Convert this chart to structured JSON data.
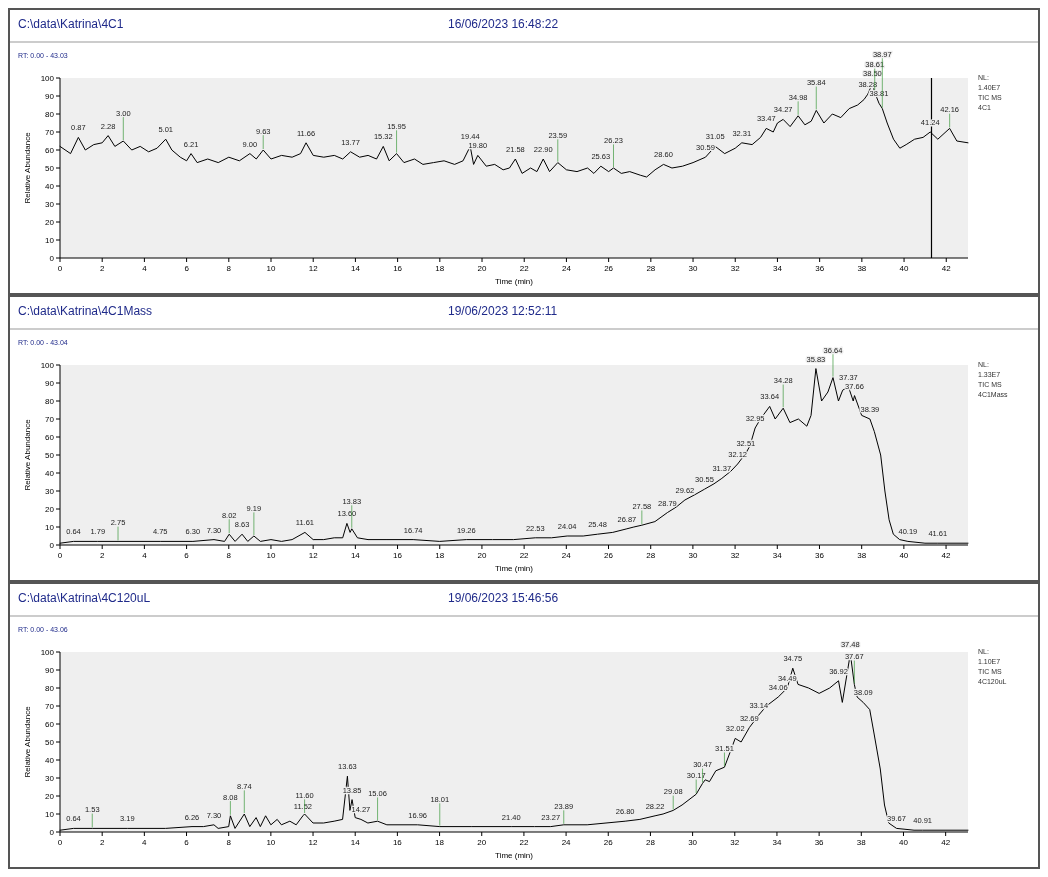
{
  "chart_data": [
    {
      "type": "line",
      "title": "C:\\data\\Katrina\\4C1",
      "subtitle": "16/06/2023 16:48:22",
      "xlabel": "Time (min)",
      "ylabel": "Relative Abundance",
      "xlim": [
        0,
        43.03
      ],
      "xticks": [
        0,
        2,
        4,
        6,
        8,
        10,
        12,
        14,
        16,
        18,
        20,
        22,
        24,
        26,
        28,
        30,
        32,
        34,
        36,
        38,
        40,
        42
      ],
      "ylim": [
        0,
        100
      ],
      "yticks": [
        0,
        10,
        20,
        30,
        40,
        50,
        60,
        70,
        80,
        90,
        100
      ],
      "ref_lines": [
        {
          "axis": "x",
          "value": 41.3
        }
      ],
      "x": [
        0,
        0.5,
        0.87,
        1.2,
        1.6,
        2,
        2.28,
        2.6,
        3,
        3.4,
        3.8,
        4.2,
        4.6,
        5.01,
        5.3,
        5.7,
        6,
        6.21,
        6.5,
        7,
        7.5,
        8,
        8.5,
        9,
        9.3,
        9.63,
        10,
        10.5,
        11,
        11.4,
        11.66,
        12,
        12.5,
        13,
        13.4,
        13.77,
        14.2,
        14.6,
        15,
        15.32,
        15.6,
        15.95,
        16.3,
        16.8,
        17.2,
        17.7,
        18.2,
        18.7,
        19.1,
        19.44,
        19.6,
        19.8,
        20.2,
        20.6,
        21,
        21.3,
        21.58,
        21.9,
        22.3,
        22.6,
        22.9,
        23.2,
        23.59,
        24,
        24.5,
        25,
        25.3,
        25.63,
        26,
        26.23,
        26.6,
        27,
        27.5,
        27.8,
        28.2,
        28.6,
        29,
        29.5,
        30,
        30.59,
        31.05,
        31.5,
        32,
        32.31,
        32.8,
        33.2,
        33.47,
        33.8,
        34,
        34.27,
        34.6,
        34.98,
        35.3,
        35.6,
        35.84,
        36.2,
        36.6,
        37,
        37.4,
        37.8,
        38.1,
        38.28,
        38.5,
        38.61,
        38.81,
        38.97,
        39.2,
        39.5,
        39.8,
        40.1,
        40.5,
        40.9,
        41.24,
        41.6,
        42.16,
        42.5,
        43.03
      ],
      "series": [
        {
          "color": "#000000",
          "values": [
            62,
            58,
            67,
            60,
            63,
            64,
            68,
            62,
            65,
            60,
            62,
            59,
            61,
            66,
            60,
            56,
            54,
            58,
            53,
            55,
            53,
            56,
            54,
            58,
            55,
            60,
            55,
            57,
            56,
            58,
            64,
            57,
            56,
            57,
            55,
            59,
            56,
            57,
            55,
            62,
            54,
            58,
            53,
            55,
            52,
            53,
            54,
            52,
            54,
            62,
            52,
            57,
            51,
            52,
            49,
            50,
            55,
            47,
            50,
            48,
            55,
            48,
            53,
            49,
            48,
            50,
            47,
            51,
            48,
            50,
            47,
            48,
            46,
            45,
            49,
            52,
            50,
            51,
            53,
            56,
            62,
            58,
            61,
            64,
            63,
            67,
            72,
            70,
            75,
            77,
            73,
            79,
            74,
            76,
            82,
            75,
            80,
            78,
            83,
            85,
            88,
            91,
            97,
            92,
            86,
            83,
            75,
            66,
            61,
            63,
            66,
            67,
            70,
            66,
            72,
            65,
            64
          ]
        }
      ],
      "annotations": [
        "RT: 0.00 - 43.03",
        "NL:",
        "1.40E7",
        "TIC  MS",
        "4C1",
        {
          "text": "0.87",
          "x": 0.87,
          "y": 67
        },
        {
          "text": "2.28",
          "x": 2.28,
          "y": 68
        },
        {
          "text": "3.00",
          "x": 3,
          "y": 65
        },
        {
          "text": "5.01",
          "x": 5.01,
          "y": 66
        },
        {
          "text": "6.21",
          "x": 6.21,
          "y": 58
        },
        {
          "text": "9.00",
          "x": 9,
          "y": 58
        },
        {
          "text": "9.63",
          "x": 9.63,
          "y": 60
        },
        {
          "text": "11.66",
          "x": 11.66,
          "y": 64
        },
        {
          "text": "13.77",
          "x": 13.77,
          "y": 59
        },
        {
          "text": "15.32",
          "x": 15.32,
          "y": 62
        },
        {
          "text": "15.95",
          "x": 15.95,
          "y": 58
        },
        {
          "text": "19.44",
          "x": 19.44,
          "y": 62
        },
        {
          "text": "19.80",
          "x": 19.8,
          "y": 57
        },
        {
          "text": "21.58",
          "x": 21.58,
          "y": 55
        },
        {
          "text": "22.90",
          "x": 22.9,
          "y": 55
        },
        {
          "text": "23.59",
          "x": 23.59,
          "y": 53
        },
        {
          "text": "25.63",
          "x": 25.63,
          "y": 51
        },
        {
          "text": "26.23",
          "x": 26.23,
          "y": 50
        },
        {
          "text": "28.60",
          "x": 28.6,
          "y": 52
        },
        {
          "text": "30.59",
          "x": 30.59,
          "y": 56
        },
        {
          "text": "31.05",
          "x": 31.05,
          "y": 62
        },
        {
          "text": "32.31",
          "x": 32.31,
          "y": 64
        },
        {
          "text": "33.47",
          "x": 33.47,
          "y": 72
        },
        {
          "text": "34.27",
          "x": 34.27,
          "y": 77
        },
        {
          "text": "34.98",
          "x": 34.98,
          "y": 79
        },
        {
          "text": "35.84",
          "x": 35.84,
          "y": 82
        },
        {
          "text": "38.28",
          "x": 38.28,
          "y": 91
        },
        {
          "text": "38.50",
          "x": 38.5,
          "y": 97
        },
        {
          "text": "38.61",
          "x": 38.61,
          "y": 92
        },
        {
          "text": "38.81",
          "x": 38.81,
          "y": 86
        },
        {
          "text": "38.97",
          "x": 38.97,
          "y": 83
        },
        {
          "text": "41.24",
          "x": 41.24,
          "y": 70
        },
        {
          "text": "42.16",
          "x": 42.16,
          "y": 72
        }
      ]
    },
    {
      "type": "line",
      "title": "C:\\data\\Katrina\\4C1Mass",
      "subtitle": "19/06/2023 12:52:11",
      "xlabel": "Time (min)",
      "ylabel": "Relative Abundance",
      "xlim": [
        0,
        43.04
      ],
      "xticks": [
        0,
        2,
        4,
        6,
        8,
        10,
        12,
        14,
        16,
        18,
        20,
        22,
        24,
        26,
        28,
        30,
        32,
        34,
        36,
        38,
        40,
        42
      ],
      "ylim": [
        0,
        100
      ],
      "yticks": [
        0,
        10,
        20,
        30,
        40,
        50,
        60,
        70,
        80,
        90,
        100
      ],
      "x": [
        0,
        0.64,
        1.79,
        2.75,
        4.75,
        6.3,
        7.3,
        7.8,
        8.02,
        8.3,
        8.63,
        8.9,
        9.19,
        9.5,
        10,
        10.5,
        11,
        11.61,
        12,
        12.5,
        13,
        13.4,
        13.6,
        13.75,
        13.83,
        14.1,
        14.6,
        15.5,
        16.74,
        18,
        19.26,
        20.5,
        21.5,
        22.53,
        23.3,
        24.04,
        24.8,
        25.48,
        26.2,
        26.87,
        27.2,
        27.58,
        28.2,
        28.79,
        29.2,
        29.62,
        30.1,
        30.55,
        31,
        31.37,
        31.8,
        32.12,
        32.51,
        32.7,
        32.95,
        33.2,
        33.64,
        33.9,
        34.28,
        34.6,
        35,
        35.4,
        35.6,
        35.83,
        36.1,
        36.4,
        36.64,
        36.9,
        37.1,
        37.37,
        37.6,
        37.66,
        38,
        38.39,
        38.6,
        38.9,
        39.1,
        39.3,
        39.5,
        39.8,
        40.19,
        41,
        41.61,
        43.04
      ],
      "series": [
        {
          "color": "#000000",
          "values": [
            1,
            2,
            2,
            2,
            2,
            2,
            3,
            2,
            6,
            2,
            6,
            2,
            5,
            2,
            3,
            2,
            3,
            7,
            3,
            3,
            4,
            4,
            12,
            7,
            9,
            4,
            3,
            3,
            3,
            2,
            3,
            3,
            3,
            4,
            4,
            5,
            5,
            6,
            7,
            9,
            10,
            11,
            13,
            18,
            21,
            25,
            28,
            31,
            34,
            37,
            41,
            45,
            51,
            55,
            65,
            70,
            77,
            70,
            76,
            68,
            70,
            66,
            72,
            98,
            80,
            85,
            93,
            80,
            86,
            88,
            80,
            83,
            72,
            70,
            63,
            50,
            30,
            14,
            6,
            3,
            2,
            1,
            1,
            1
          ]
        }
      ],
      "annotations": [
        "RT: 0.00 - 43.04",
        "NL:",
        "1.33E7",
        "TIC  MS",
        "4C1Mass",
        {
          "text": "0.64",
          "x": 0.64,
          "y": 2
        },
        {
          "text": "1.79",
          "x": 1.79,
          "y": 2
        },
        {
          "text": "2.75",
          "x": 2.75,
          "y": 2
        },
        {
          "text": "4.75",
          "x": 4.75,
          "y": 2
        },
        {
          "text": "6.30",
          "x": 6.3,
          "y": 2
        },
        {
          "text": "7.30",
          "x": 7.3,
          "y": 3
        },
        {
          "text": "8.02",
          "x": 8.02,
          "y": 6
        },
        {
          "text": "8.63",
          "x": 8.63,
          "y": 6
        },
        {
          "text": "9.19",
          "x": 9.19,
          "y": 5
        },
        {
          "text": "11.61",
          "x": 11.61,
          "y": 7
        },
        {
          "text": "13.60",
          "x": 13.6,
          "y": 12
        },
        {
          "text": "13.83",
          "x": 13.83,
          "y": 9
        },
        {
          "text": "16.74",
          "x": 16.74,
          "y": 3
        },
        {
          "text": "19.26",
          "x": 19.26,
          "y": 3
        },
        {
          "text": "22.53",
          "x": 22.53,
          "y": 4
        },
        {
          "text": "24.04",
          "x": 24.04,
          "y": 5
        },
        {
          "text": "25.48",
          "x": 25.48,
          "y": 6
        },
        {
          "text": "26.87",
          "x": 26.87,
          "y": 9
        },
        {
          "text": "27.58",
          "x": 27.58,
          "y": 11
        },
        {
          "text": "28.79",
          "x": 28.79,
          "y": 18
        },
        {
          "text": "29.62",
          "x": 29.62,
          "y": 25
        },
        {
          "text": "30.55",
          "x": 30.55,
          "y": 31
        },
        {
          "text": "31.37",
          "x": 31.37,
          "y": 37
        },
        {
          "text": "32.12",
          "x": 32.12,
          "y": 45
        },
        {
          "text": "32.51",
          "x": 32.51,
          "y": 51
        },
        {
          "text": "32.95",
          "x": 32.95,
          "y": 65
        },
        {
          "text": "33.64",
          "x": 33.64,
          "y": 77
        },
        {
          "text": "34.28",
          "x": 34.28,
          "y": 76
        },
        {
          "text": "35.83",
          "x": 35.83,
          "y": 98
        },
        {
          "text": "36.64",
          "x": 36.64,
          "y": 93
        },
        {
          "text": "37.37",
          "x": 37.37,
          "y": 88
        },
        {
          "text": "37.66",
          "x": 37.66,
          "y": 83
        },
        {
          "text": "38.39",
          "x": 38.39,
          "y": 70
        },
        {
          "text": "40.19",
          "x": 40.19,
          "y": 2
        },
        {
          "text": "41.61",
          "x": 41.61,
          "y": 1
        }
      ]
    },
    {
      "type": "line",
      "title": "C:\\data\\Katrina\\4C120uL",
      "subtitle": "19/06/2023 15:46:56",
      "xlabel": "Time (min)",
      "ylabel": "Relative Abundance",
      "xlim": [
        0,
        43.06
      ],
      "xticks": [
        0,
        2,
        4,
        6,
        8,
        10,
        12,
        14,
        16,
        18,
        20,
        22,
        24,
        26,
        28,
        30,
        32,
        34,
        36,
        38,
        40,
        42
      ],
      "ylim": [
        0,
        100
      ],
      "yticks": [
        0,
        10,
        20,
        30,
        40,
        50,
        60,
        70,
        80,
        90,
        100
      ],
      "x": [
        0,
        0.64,
        1.53,
        3.19,
        5,
        6.26,
        6.8,
        7.3,
        7.5,
        8,
        8.08,
        8.3,
        8.74,
        9,
        9.3,
        9.5,
        9.75,
        10,
        10.3,
        10.5,
        10.9,
        11.2,
        11.52,
        11.6,
        12,
        12.5,
        13,
        13.4,
        13.63,
        13.75,
        13.85,
        14,
        14.27,
        14.6,
        15.06,
        15.5,
        16.96,
        18.01,
        19.5,
        21.4,
        22.5,
        23.27,
        23.89,
        25,
        26.8,
        27.5,
        28.22,
        28.6,
        29.08,
        29.5,
        30.17,
        30.47,
        30.6,
        30.8,
        31.1,
        31.51,
        31.8,
        32.02,
        32.3,
        32.69,
        33.14,
        33.5,
        34.06,
        34.49,
        34.75,
        35,
        35.5,
        36,
        36.5,
        36.92,
        37.1,
        37.48,
        37.67,
        37.8,
        38.09,
        38.4,
        38.6,
        38.9,
        39.1,
        39.3,
        39.67,
        40.5,
        40.91,
        43.06
      ],
      "series": [
        {
          "color": "#000000",
          "values": [
            1,
            2,
            2,
            2,
            2,
            3,
            3,
            4,
            2,
            3,
            9,
            2,
            10,
            3,
            8,
            3,
            9,
            4,
            7,
            4,
            6,
            4,
            9,
            10,
            5,
            5,
            6,
            7,
            31,
            12,
            18,
            8,
            7,
            5,
            6,
            4,
            4,
            3,
            3,
            3,
            3,
            3,
            4,
            4,
            6,
            7,
            9,
            10,
            12,
            15,
            21,
            27,
            29,
            28,
            34,
            36,
            45,
            52,
            50,
            58,
            65,
            70,
            75,
            80,
            91,
            82,
            80,
            77,
            80,
            84,
            72,
            99,
            82,
            75,
            72,
            68,
            55,
            35,
            15,
            5,
            2,
            1,
            1,
            1
          ]
        }
      ],
      "annotations": [
        "RT: 0.00 - 43.06",
        "NL:",
        "1.10E7",
        "TIC  MS",
        "4C120uL",
        {
          "text": "0.64",
          "x": 0.64,
          "y": 2
        },
        {
          "text": "1.53",
          "x": 1.53,
          "y": 2
        },
        {
          "text": "3.19",
          "x": 3.19,
          "y": 2
        },
        {
          "text": "6.26",
          "x": 6.26,
          "y": 3
        },
        {
          "text": "7.30",
          "x": 7.3,
          "y": 4
        },
        {
          "text": "8.08",
          "x": 8.08,
          "y": 9
        },
        {
          "text": "8.74",
          "x": 8.74,
          "y": 10
        },
        {
          "text": "11.52",
          "x": 11.52,
          "y": 9
        },
        {
          "text": "11.60",
          "x": 11.6,
          "y": 10
        },
        {
          "text": "13.63",
          "x": 13.63,
          "y": 31
        },
        {
          "text": "13.85",
          "x": 13.85,
          "y": 18
        },
        {
          "text": "14.27",
          "x": 14.27,
          "y": 7
        },
        {
          "text": "15.06",
          "x": 15.06,
          "y": 6
        },
        {
          "text": "16.96",
          "x": 16.96,
          "y": 4
        },
        {
          "text": "18.01",
          "x": 18.01,
          "y": 3
        },
        {
          "text": "21.40",
          "x": 21.4,
          "y": 3
        },
        {
          "text": "23.27",
          "x": 23.27,
          "y": 3
        },
        {
          "text": "23.89",
          "x": 23.89,
          "y": 4
        },
        {
          "text": "26.80",
          "x": 26.8,
          "y": 6
        },
        {
          "text": "28.22",
          "x": 28.22,
          "y": 9
        },
        {
          "text": "29.08",
          "x": 29.08,
          "y": 12
        },
        {
          "text": "30.17",
          "x": 30.17,
          "y": 21
        },
        {
          "text": "30.47",
          "x": 30.47,
          "y": 27
        },
        {
          "text": "31.51",
          "x": 31.51,
          "y": 36
        },
        {
          "text": "32.02",
          "x": 32.02,
          "y": 52
        },
        {
          "text": "32.69",
          "x": 32.69,
          "y": 58
        },
        {
          "text": "33.14",
          "x": 33.14,
          "y": 65
        },
        {
          "text": "34.06",
          "x": 34.06,
          "y": 75
        },
        {
          "text": "34.49",
          "x": 34.49,
          "y": 80
        },
        {
          "text": "34.75",
          "x": 34.75,
          "y": 91
        },
        {
          "text": "36.92",
          "x": 36.92,
          "y": 84
        },
        {
          "text": "37.48",
          "x": 37.48,
          "y": 99
        },
        {
          "text": "37.67",
          "x": 37.67,
          "y": 82
        },
        {
          "text": "38.09",
          "x": 38.09,
          "y": 72
        },
        {
          "text": "39.67",
          "x": 39.67,
          "y": 2
        },
        {
          "text": "40.91",
          "x": 40.91,
          "y": 1
        }
      ]
    }
  ]
}
